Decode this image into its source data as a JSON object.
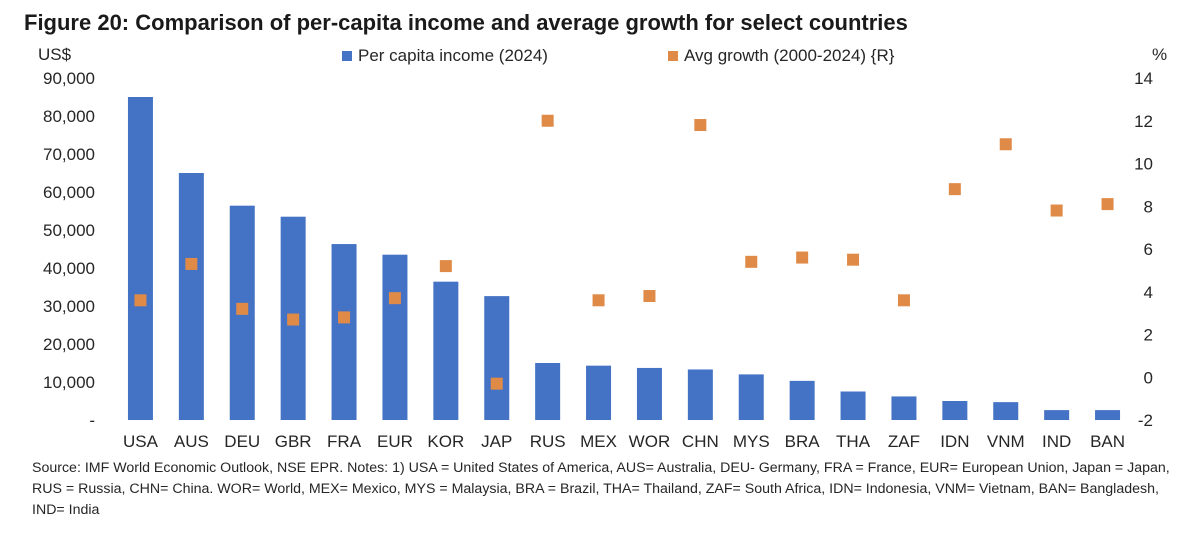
{
  "chart_data": {
    "type": "bar",
    "title": "Figure 20: Comparison of per-capita income and average growth for select countries",
    "ylabel": "US$",
    "y2label": "%",
    "ylim": [
      0,
      90000
    ],
    "y2lim": [
      -2,
      14
    ],
    "yticks": [
      "-",
      "10,000",
      "20,000",
      "30,000",
      "40,000",
      "50,000",
      "60,000",
      "70,000",
      "80,000",
      "90,000"
    ],
    "y2ticks": [
      "-2",
      "0",
      "2",
      "4",
      "6",
      "8",
      "10",
      "12",
      "14"
    ],
    "legend_position": "top",
    "grid": false,
    "categories": [
      "USA",
      "AUS",
      "DEU",
      "GBR",
      "FRA",
      "EUR",
      "KOR",
      "JAP",
      "RUS",
      "MEX",
      "WOR",
      "CHN",
      "MYS",
      "BRA",
      "THA",
      "ZAF",
      "IDN",
      "VNM",
      "IND",
      "BAN"
    ],
    "series": [
      {
        "name": "Per capita income (2024)",
        "kind": "bar",
        "axis": "left",
        "color": "#4472C4",
        "values": [
          85000,
          65000,
          56400,
          53500,
          46300,
          43500,
          36400,
          32600,
          15000,
          14300,
          13700,
          13300,
          12000,
          10300,
          7500,
          6200,
          5000,
          4700,
          2600,
          2600
        ]
      },
      {
        "name": "Avg growth (2000-2024) {R}",
        "kind": "marker",
        "axis": "right",
        "color": "#E08A48",
        "values": [
          3.6,
          5.3,
          3.2,
          2.7,
          2.8,
          3.7,
          5.2,
          -0.3,
          12.0,
          3.6,
          3.8,
          11.8,
          5.4,
          5.6,
          5.5,
          3.6,
          8.8,
          10.9,
          7.8,
          8.1
        ]
      }
    ]
  },
  "notes": {
    "text": "Source: IMF World Economic Outlook, NSE EPR. Notes: 1) USA = United States of America, AUS= Australia, DEU- Germany, FRA = France, EUR= European Union, Japan = Japan, RUS = Russia, CHN= China. WOR= World, MEX= Mexico, MYS = Malaysia, BRA = Brazil, THA= Thailand, ZAF= South Africa, IDN= Indonesia, VNM= Vietnam, BAN= Bangladesh, IND= India"
  }
}
